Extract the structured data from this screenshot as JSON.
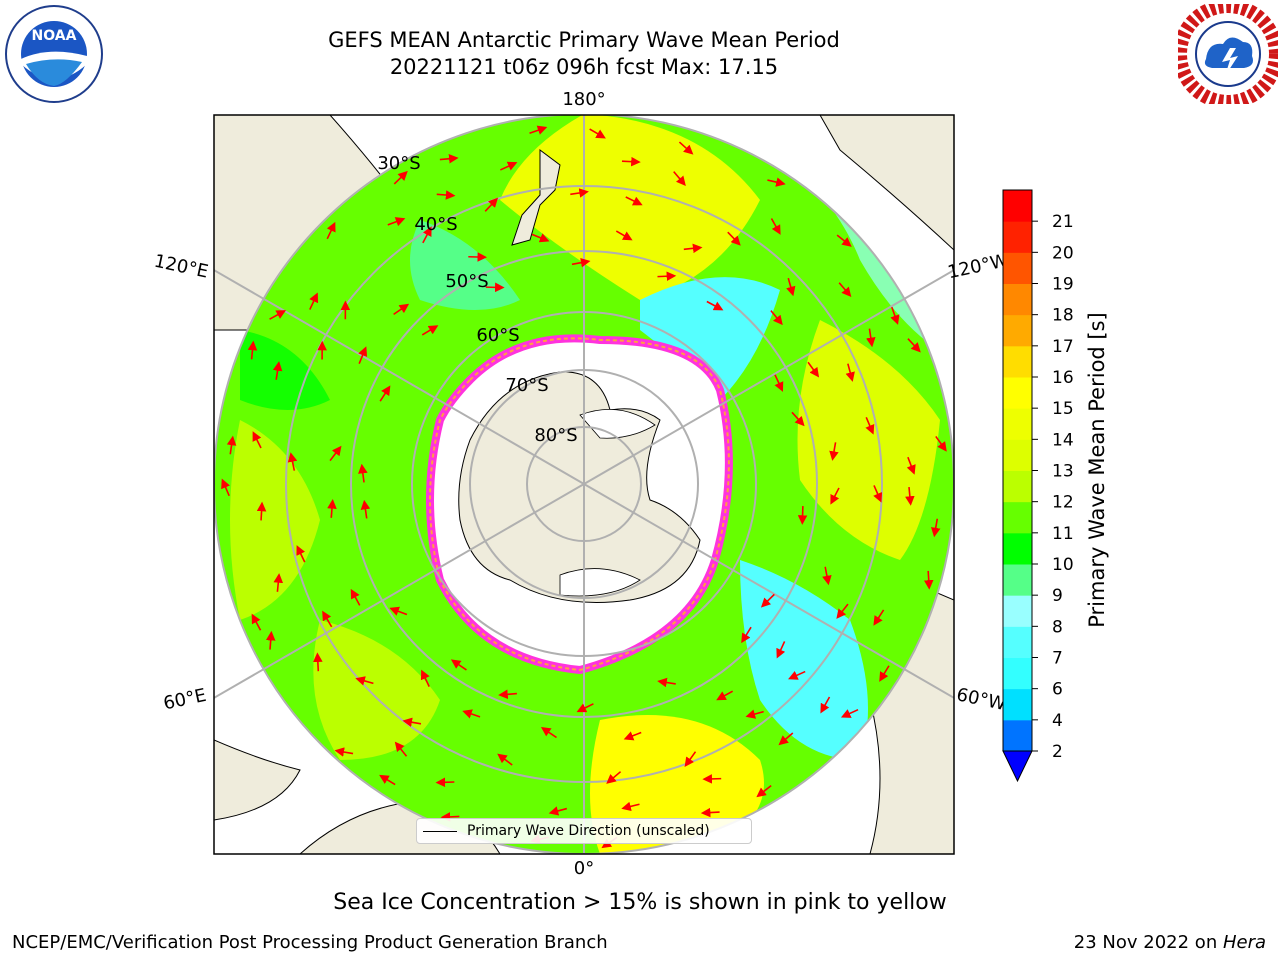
{
  "header": {
    "title_line1": "GEFS MEAN Antarctic Primary Wave Mean Period",
    "title_line2": "20221121 t06z 096h fcst   Max: 17.15"
  },
  "map": {
    "projection": "south-polar stereographic",
    "longitude_labels": {
      "top": "180°",
      "upper_left": "120°E",
      "upper_right": "120°W",
      "lower_left": "60°E",
      "lower_right": "60°W",
      "bottom": "0°"
    },
    "latitude_labels": [
      "30°S",
      "40°S",
      "50°S",
      "60°S",
      "70°S",
      "80°S"
    ],
    "legend_label": "Primary Wave Direction (unscaled)",
    "colors": {
      "land": "#efecdc",
      "sea_ice": "#ffffff",
      "ice_edge_pink": "#ff33dd",
      "ice_edge_orange": "#ffa040",
      "arrow": "#ff0000",
      "graticule": "#b0b0b0"
    }
  },
  "colorbar": {
    "label": "Primary Wave Mean Period [s]",
    "ticks": [
      "2",
      "4",
      "6",
      "7",
      "8",
      "9",
      "10",
      "11",
      "12",
      "13",
      "14",
      "15",
      "16",
      "17",
      "18",
      "19",
      "20",
      "21"
    ],
    "band_colors": [
      "#0074ff",
      "#00e0ff",
      "#33ffff",
      "#55ffff",
      "#99ffff",
      "#55ff88",
      "#00ff00",
      "#66ff00",
      "#bbff00",
      "#ddff00",
      "#eeff00",
      "#ffff00",
      "#ffdd00",
      "#ffaa00",
      "#ff8800",
      "#ff5500",
      "#ff2200",
      "#ff0000"
    ],
    "extend_color": "#0000ff"
  },
  "caption": "Sea Ice Concentration > 15% is shown in pink to yellow",
  "footer": {
    "left": "NCEP/EMC/Verification Post Processing Product Generation Branch",
    "right_date": "23 Nov 2022 on ",
    "right_host": "Hera"
  }
}
